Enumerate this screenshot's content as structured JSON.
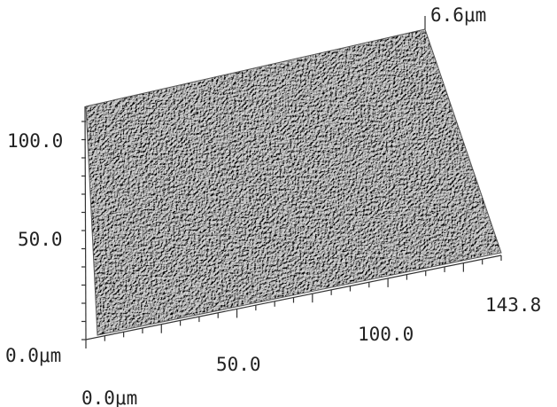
{
  "z_axis": {
    "max_label": "6.6μm"
  },
  "y_axis": {
    "labels": [
      "100.0",
      "50.0",
      "0.0μm"
    ]
  },
  "x_axis": {
    "labels": [
      "143.8",
      "100.0",
      "50.0",
      "0.0μm"
    ]
  }
}
